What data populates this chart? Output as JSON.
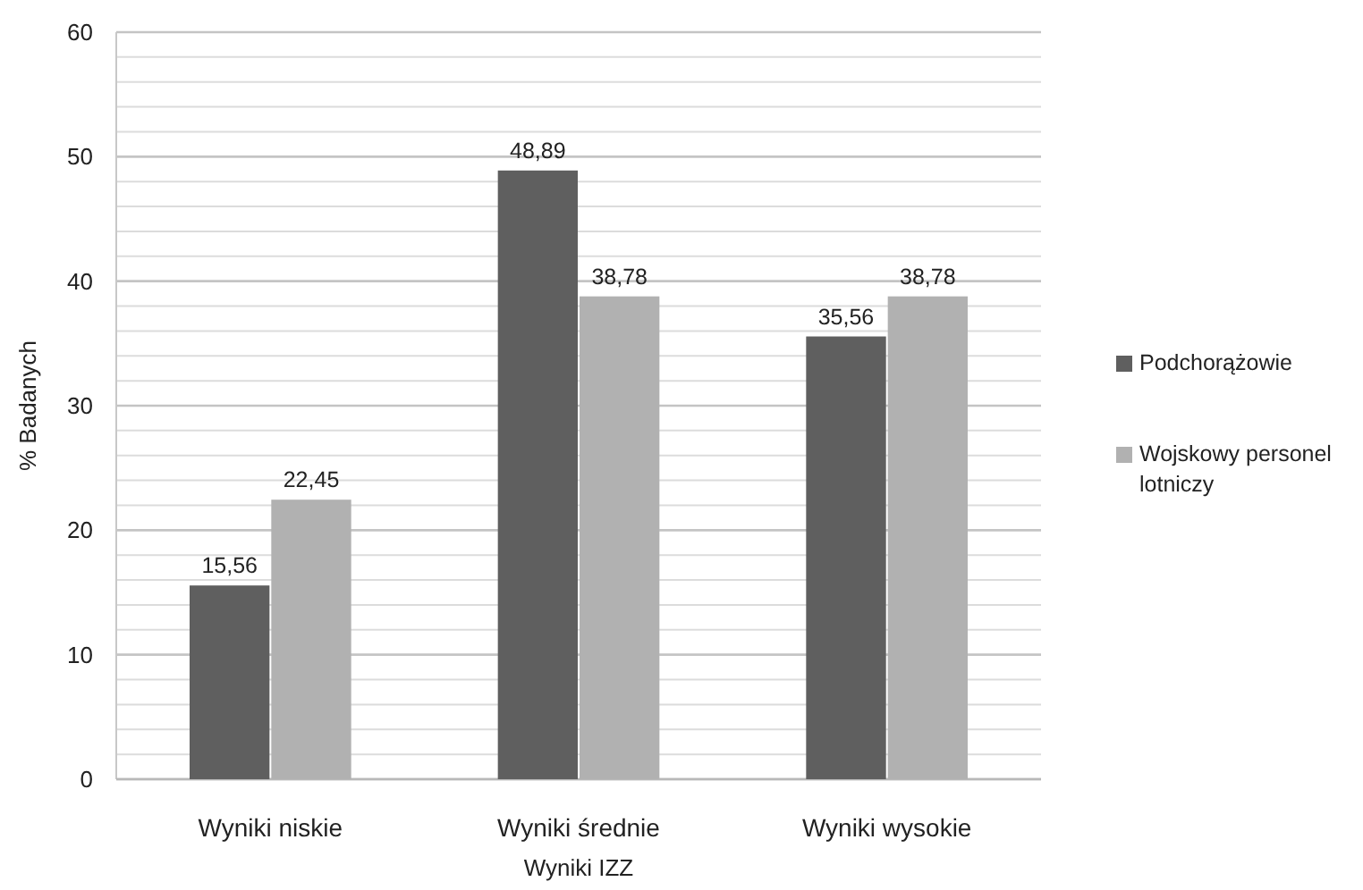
{
  "chart_data": {
    "type": "bar",
    "xlabel": "Wyniki IZZ",
    "ylabel": "% Badanych",
    "categories": [
      "Wyniki niskie",
      "Wyniki średnie",
      "Wyniki wysokie"
    ],
    "series": [
      {
        "name": "Podchorążowie",
        "color": "#5f5f5f",
        "values": [
          15.56,
          48.89,
          35.56
        ],
        "value_labels": [
          "15,56",
          "48,89",
          "35,56"
        ]
      },
      {
        "name": "Wojskowy personel lotniczy",
        "color": "#b1b1b1",
        "values": [
          22.45,
          38.78,
          38.78
        ],
        "value_labels": [
          "22,45",
          "38,78",
          "38,78"
        ]
      }
    ],
    "ylim": [
      0,
      60
    ],
    "yticks": [
      0,
      {
        "value": 2,
        "label": null
      },
      {
        "value": 4,
        "label": null
      },
      {
        "value": 6,
        "label": null
      },
      {
        "value": 8,
        "label": null
      },
      10,
      {
        "value": 12,
        "label": null
      },
      {
        "value": 14,
        "label": null
      },
      {
        "value": 16,
        "label": null
      },
      {
        "value": 18,
        "label": null
      },
      20,
      {
        "value": 22,
        "label": null
      },
      {
        "value": 24,
        "label": null
      },
      {
        "value": 26,
        "label": null
      },
      {
        "value": 28,
        "label": null
      },
      30,
      {
        "value": 32,
        "label": null
      },
      {
        "value": 34,
        "label": null
      },
      {
        "value": 36,
        "label": null
      },
      {
        "value": 38,
        "label": null
      },
      40,
      {
        "value": 42,
        "label": null
      },
      {
        "value": 44,
        "label": null
      },
      {
        "value": 46,
        "label": null
      },
      {
        "value": 48,
        "label": null
      },
      50,
      {
        "value": 52,
        "label": null
      },
      {
        "value": 54,
        "label": null
      },
      {
        "value": 56,
        "label": null
      },
      {
        "value": 58,
        "label": null
      },
      60
    ],
    "grid": true,
    "legend": "right"
  }
}
